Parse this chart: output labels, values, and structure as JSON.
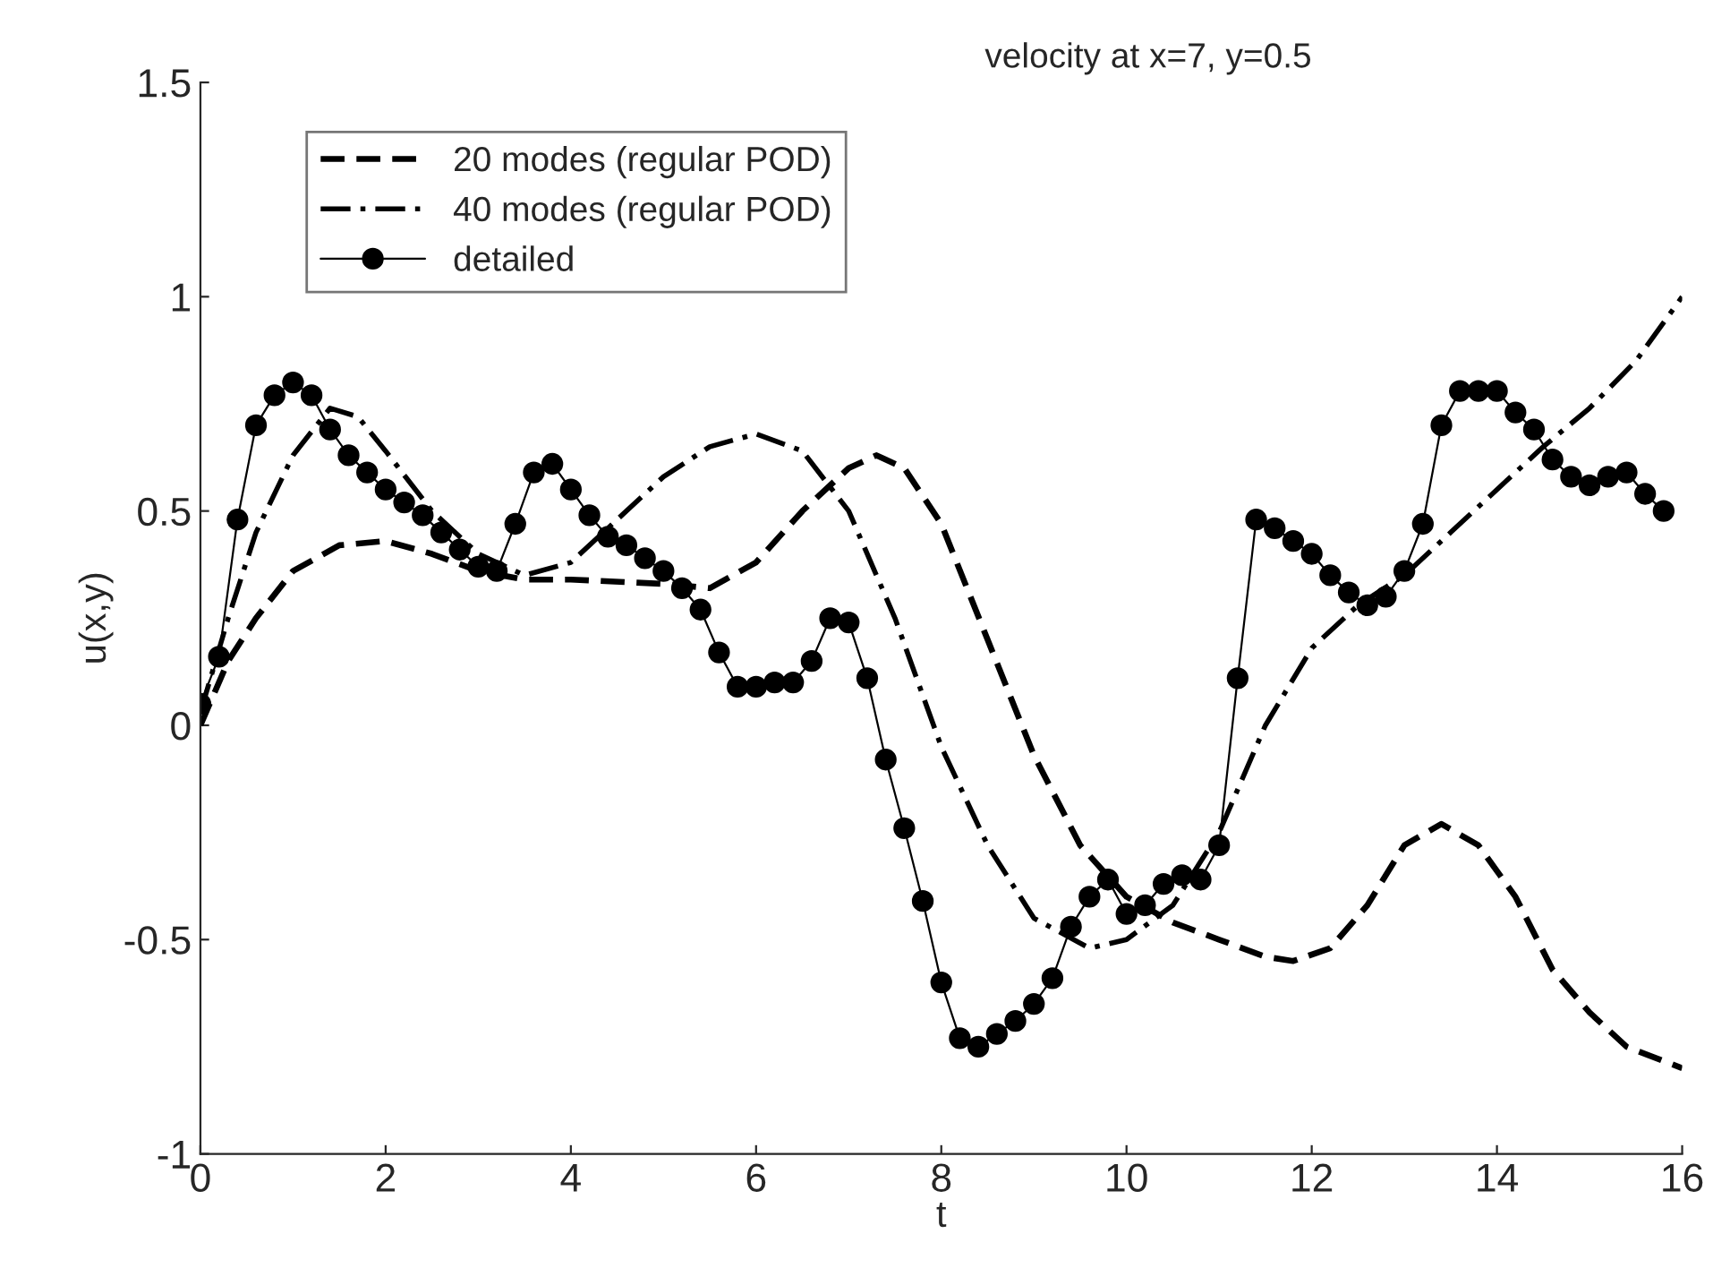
{
  "chart_data": {
    "type": "line",
    "title": "velocity at x=7, y=0.5",
    "xlabel": "t",
    "ylabel": "u(x,y)",
    "xlim": [
      0,
      16
    ],
    "xticks": [
      0,
      2,
      4,
      6,
      8,
      10,
      12,
      14,
      16
    ],
    "ylim": [
      -1,
      1.5
    ],
    "yticks": [
      -1,
      -0.5,
      0,
      0.5,
      1,
      1.5
    ],
    "grid": false,
    "legend": "top left",
    "series": [
      {
        "name": "20 modes (regular POD)",
        "color": "#000000",
        "line_style": "dashed",
        "marker": "none",
        "x": [
          0,
          0.3,
          0.6,
          1.0,
          1.5,
          2.0,
          2.5,
          3.0,
          3.5,
          4.0,
          5.0,
          5.5,
          6.0,
          6.5,
          7.0,
          7.3,
          7.6,
          8.0,
          8.5,
          9.0,
          9.5,
          10.0,
          10.5,
          11.0,
          11.5,
          11.8,
          12.2,
          12.6,
          13.0,
          13.4,
          13.8,
          14.2,
          14.6,
          15.0,
          15.4,
          16.0
        ],
        "values": [
          0.0,
          0.15,
          0.25,
          0.36,
          0.42,
          0.43,
          0.4,
          0.36,
          0.34,
          0.34,
          0.33,
          0.32,
          0.38,
          0.5,
          0.6,
          0.63,
          0.6,
          0.47,
          0.2,
          -0.07,
          -0.28,
          -0.4,
          -0.46,
          -0.5,
          -0.54,
          -0.55,
          -0.52,
          -0.42,
          -0.28,
          -0.23,
          -0.28,
          -0.4,
          -0.57,
          -0.67,
          -0.75,
          -0.8
        ]
      },
      {
        "name": "40 modes (regular POD)",
        "color": "#000000",
        "line_style": "dashdot",
        "marker": "none",
        "x": [
          0,
          0.3,
          0.6,
          1.0,
          1.4,
          1.7,
          2.0,
          2.5,
          3.0,
          3.5,
          4.0,
          4.5,
          5.0,
          5.5,
          6.0,
          6.5,
          7.0,
          7.5,
          8.0,
          8.5,
          9.0,
          9.6,
          10.0,
          10.5,
          11.0,
          11.5,
          12.0,
          12.5,
          13.0,
          13.5,
          14.0,
          14.5,
          15.0,
          15.5,
          16.0
        ],
        "values": [
          0.03,
          0.25,
          0.45,
          0.63,
          0.74,
          0.72,
          0.64,
          0.5,
          0.4,
          0.35,
          0.38,
          0.48,
          0.58,
          0.65,
          0.68,
          0.64,
          0.5,
          0.25,
          -0.05,
          -0.28,
          -0.45,
          -0.52,
          -0.5,
          -0.42,
          -0.25,
          0.0,
          0.18,
          0.28,
          0.35,
          0.45,
          0.55,
          0.65,
          0.74,
          0.85,
          1.0
        ]
      },
      {
        "name": "detailed",
        "color": "#000000",
        "line_style": "solid",
        "marker": "circle",
        "x": [
          0,
          0.2,
          0.4,
          0.6,
          0.8,
          1.0,
          1.2,
          1.4,
          1.6,
          1.8,
          2.0,
          2.2,
          2.4,
          2.6,
          2.8,
          3.0,
          3.2,
          3.4,
          3.6,
          3.8,
          4.0,
          4.2,
          4.4,
          4.6,
          4.8,
          5.0,
          5.2,
          5.4,
          5.6,
          5.8,
          6.0,
          6.2,
          6.4,
          6.6,
          6.8,
          7.0,
          7.2,
          7.4,
          7.6,
          7.8,
          8.0,
          8.2,
          8.4,
          8.6,
          8.8,
          9.0,
          9.2,
          9.4,
          9.6,
          9.8,
          10.0,
          10.2,
          10.4,
          10.6,
          10.8,
          11.0,
          11.2,
          11.4,
          11.6,
          11.8,
          12.0,
          12.2,
          12.4,
          12.6,
          12.8,
          13.0,
          13.2,
          13.4,
          13.6,
          13.8,
          14.0,
          14.2,
          14.4,
          14.6,
          14.8,
          15.0,
          15.2,
          15.4,
          15.6,
          15.8
        ],
        "values": [
          0.05,
          0.16,
          0.48,
          0.7,
          0.77,
          0.8,
          0.77,
          0.69,
          0.63,
          0.59,
          0.55,
          0.52,
          0.49,
          0.45,
          0.41,
          0.37,
          0.36,
          0.47,
          0.59,
          0.61,
          0.55,
          0.49,
          0.44,
          0.42,
          0.39,
          0.36,
          0.32,
          0.27,
          0.17,
          0.09,
          0.09,
          0.1,
          0.1,
          0.15,
          0.25,
          0.24,
          0.11,
          -0.08,
          -0.24,
          -0.41,
          -0.6,
          -0.73,
          -0.75,
          -0.72,
          -0.69,
          -0.65,
          -0.59,
          -0.47,
          -0.4,
          -0.36,
          -0.44,
          -0.42,
          -0.37,
          -0.35,
          -0.36,
          -0.28,
          0.11,
          0.48,
          0.46,
          0.43,
          0.4,
          0.35,
          0.31,
          0.28,
          0.3,
          0.36,
          0.47,
          0.7,
          0.78,
          0.78,
          0.78,
          0.73,
          0.69,
          0.62,
          0.58,
          0.56,
          0.58,
          0.59,
          0.54,
          0.5
        ]
      }
    ]
  }
}
